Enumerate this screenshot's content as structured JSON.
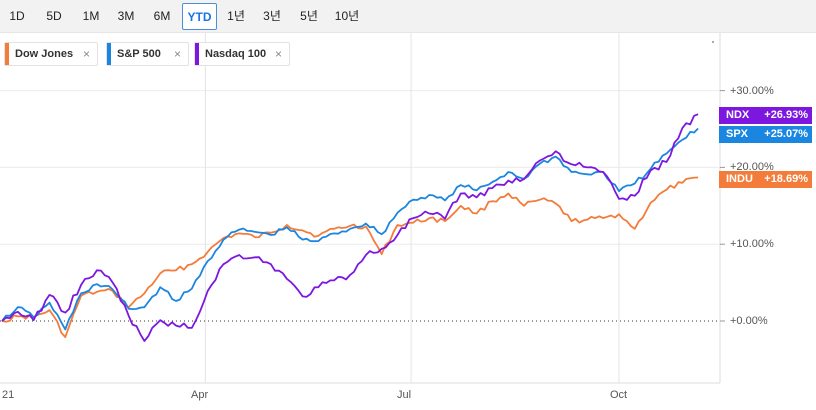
{
  "range_buttons": [
    {
      "label": "1D",
      "active": false
    },
    {
      "label": "5D",
      "active": false
    },
    {
      "label": "1M",
      "active": false
    },
    {
      "label": "3M",
      "active": false
    },
    {
      "label": "6M",
      "active": false
    },
    {
      "label": "YTD",
      "active": true
    },
    {
      "label": "1년",
      "active": false
    },
    {
      "label": "3년",
      "active": false
    },
    {
      "label": "5년",
      "active": false
    },
    {
      "label": "10년",
      "active": false
    }
  ],
  "legend": [
    {
      "label": "Dow Jones",
      "color": "#f37c3a",
      "close": "×"
    },
    {
      "label": "S&P 500",
      "color": "#1b86e0",
      "close": "×"
    },
    {
      "label": "Nasdaq 100",
      "color": "#7d17e0",
      "close": "×"
    }
  ],
  "end_labels": [
    {
      "symbol": "NDX",
      "value": "+26.93%",
      "color": "#7d17e0"
    },
    {
      "symbol": "SPX",
      "value": "+25.07%",
      "color": "#1b86e0"
    },
    {
      "symbol": "INDU",
      "value": "+18.69%",
      "color": "#f37c3a"
    }
  ],
  "y_tick_labels": [
    "+30.00%",
    "+20.00%",
    "+10.00%",
    "+0.00%"
  ],
  "x_tick_labels": [
    "21",
    "Apr",
    "Jul",
    "Oct"
  ],
  "colors": {
    "dow": "#f37c3a",
    "spx": "#1b86e0",
    "ndx": "#7d17e0",
    "active_button": "#1a73e8"
  },
  "chart_data": {
    "type": "line",
    "x_unit": "date",
    "x_ticks": [
      "2021-01-01",
      "2021-04-01",
      "2021-07-01",
      "2021-10-01"
    ],
    "x_tick_labels": [
      "21",
      "Apr",
      "Jul",
      "Oct"
    ],
    "y_ticks": [
      0,
      10,
      20,
      30
    ],
    "y_tick_labels": [
      "+0.00%",
      "+10.00%",
      "+20.00%",
      "+30.00%"
    ],
    "ylim": [
      -8.5,
      37
    ],
    "xlim": [
      "2021-01-01",
      "2021-11-05"
    ],
    "zero_line": "dotted",
    "grid": "vertical at x ticks",
    "legend_position": "top-left",
    "series": [
      {
        "name": "Dow Jones",
        "symbol": "INDU",
        "color": "#f37c3a",
        "last_value": 18.69,
        "points": [
          [
            "2021-01-01",
            0
          ],
          [
            "2021-01-08",
            0.6
          ],
          [
            "2021-01-15",
            0.5
          ],
          [
            "2021-01-22",
            1.4
          ],
          [
            "2021-01-29",
            -2.1
          ],
          [
            "2021-02-05",
            3.3
          ],
          [
            "2021-02-12",
            3.8
          ],
          [
            "2021-02-19",
            3.9
          ],
          [
            "2021-02-26",
            1.8
          ],
          [
            "2021-03-05",
            3.6
          ],
          [
            "2021-03-12",
            6.2
          ],
          [
            "2021-03-19",
            6.6
          ],
          [
            "2021-03-26",
            7.4
          ],
          [
            "2021-04-02",
            9.0
          ],
          [
            "2021-04-09",
            10.8
          ],
          [
            "2021-04-16",
            11.4
          ],
          [
            "2021-04-23",
            10.9
          ],
          [
            "2021-04-30",
            11.5
          ],
          [
            "2021-05-07",
            12.5
          ],
          [
            "2021-05-14",
            11.8
          ],
          [
            "2021-05-21",
            11.1
          ],
          [
            "2021-05-28",
            12.0
          ],
          [
            "2021-06-04",
            12.4
          ],
          [
            "2021-06-11",
            12.3
          ],
          [
            "2021-06-18",
            8.7
          ],
          [
            "2021-06-25",
            12.5
          ],
          [
            "2021-07-02",
            12.8
          ],
          [
            "2021-07-09",
            13.4
          ],
          [
            "2021-07-16",
            13.0
          ],
          [
            "2021-07-23",
            15.0
          ],
          [
            "2021-07-30",
            14.0
          ],
          [
            "2021-08-06",
            15.6
          ],
          [
            "2021-08-13",
            16.6
          ],
          [
            "2021-08-20",
            15.0
          ],
          [
            "2021-08-27",
            15.8
          ],
          [
            "2021-09-03",
            15.3
          ],
          [
            "2021-09-10",
            13.0
          ],
          [
            "2021-09-17",
            13.2
          ],
          [
            "2021-09-24",
            13.4
          ],
          [
            "2021-10-01",
            13.9
          ],
          [
            "2021-10-08",
            12.0
          ],
          [
            "2021-10-15",
            15.4
          ],
          [
            "2021-10-22",
            17.1
          ],
          [
            "2021-10-29",
            18.0
          ],
          [
            "2021-11-05",
            18.69
          ]
        ]
      },
      {
        "name": "S&P 500",
        "symbol": "SPX",
        "color": "#1b86e0",
        "last_value": 25.07,
        "points": [
          [
            "2021-01-01",
            0
          ],
          [
            "2021-01-08",
            1.8
          ],
          [
            "2021-01-15",
            0.5
          ],
          [
            "2021-01-22",
            2.4
          ],
          [
            "2021-01-29",
            -1.1
          ],
          [
            "2021-02-05",
            3.6
          ],
          [
            "2021-02-12",
            4.8
          ],
          [
            "2021-02-19",
            4.1
          ],
          [
            "2021-02-26",
            1.6
          ],
          [
            "2021-03-05",
            1.8
          ],
          [
            "2021-03-12",
            4.4
          ],
          [
            "2021-03-19",
            2.6
          ],
          [
            "2021-03-26",
            4.2
          ],
          [
            "2021-04-02",
            7.8
          ],
          [
            "2021-04-09",
            10.6
          ],
          [
            "2021-04-16",
            11.9
          ],
          [
            "2021-04-23",
            11.6
          ],
          [
            "2021-04-30",
            11.2
          ],
          [
            "2021-05-07",
            12.2
          ],
          [
            "2021-05-14",
            10.6
          ],
          [
            "2021-05-21",
            10.4
          ],
          [
            "2021-05-28",
            11.4
          ],
          [
            "2021-06-04",
            12.0
          ],
          [
            "2021-06-11",
            12.7
          ],
          [
            "2021-06-18",
            11.3
          ],
          [
            "2021-06-25",
            14.1
          ],
          [
            "2021-07-02",
            15.8
          ],
          [
            "2021-07-09",
            16.4
          ],
          [
            "2021-07-16",
            15.7
          ],
          [
            "2021-07-23",
            17.7
          ],
          [
            "2021-07-30",
            17.0
          ],
          [
            "2021-08-06",
            18.1
          ],
          [
            "2021-08-13",
            19.4
          ],
          [
            "2021-08-20",
            18.5
          ],
          [
            "2021-08-27",
            20.5
          ],
          [
            "2021-09-03",
            21.4
          ],
          [
            "2021-09-10",
            19.4
          ],
          [
            "2021-09-17",
            19.1
          ],
          [
            "2021-09-24",
            19.4
          ],
          [
            "2021-10-01",
            16.9
          ],
          [
            "2021-10-08",
            17.9
          ],
          [
            "2021-10-15",
            19.8
          ],
          [
            "2021-10-22",
            21.8
          ],
          [
            "2021-10-29",
            23.6
          ],
          [
            "2021-11-05",
            25.07
          ]
        ]
      },
      {
        "name": "Nasdaq 100",
        "symbol": "NDX",
        "color": "#7d17e0",
        "last_value": 26.93,
        "points": [
          [
            "2021-01-01",
            0
          ],
          [
            "2021-01-08",
            1.2
          ],
          [
            "2021-01-15",
            0.1
          ],
          [
            "2021-01-22",
            3.4
          ],
          [
            "2021-01-29",
            1.1
          ],
          [
            "2021-02-05",
            4.7
          ],
          [
            "2021-02-12",
            6.6
          ],
          [
            "2021-02-19",
            5.0
          ],
          [
            "2021-02-26",
            0.7
          ],
          [
            "2021-03-05",
            -2.6
          ],
          [
            "2021-03-12",
            0.1
          ],
          [
            "2021-03-19",
            -0.6
          ],
          [
            "2021-03-26",
            -0.9
          ],
          [
            "2021-04-02",
            3.9
          ],
          [
            "2021-04-09",
            7.4
          ],
          [
            "2021-04-16",
            8.6
          ],
          [
            "2021-04-23",
            8.3
          ],
          [
            "2021-04-30",
            7.4
          ],
          [
            "2021-05-07",
            5.5
          ],
          [
            "2021-05-14",
            3.2
          ],
          [
            "2021-05-21",
            4.4
          ],
          [
            "2021-05-28",
            5.3
          ],
          [
            "2021-06-04",
            6.0
          ],
          [
            "2021-06-11",
            8.6
          ],
          [
            "2021-06-18",
            9.4
          ],
          [
            "2021-06-25",
            11.2
          ],
          [
            "2021-07-02",
            13.4
          ],
          [
            "2021-07-09",
            14.0
          ],
          [
            "2021-07-16",
            13.3
          ],
          [
            "2021-07-23",
            16.6
          ],
          [
            "2021-07-30",
            16.1
          ],
          [
            "2021-08-06",
            17.3
          ],
          [
            "2021-08-13",
            18.3
          ],
          [
            "2021-08-20",
            18.5
          ],
          [
            "2021-08-27",
            20.9
          ],
          [
            "2021-09-03",
            22.1
          ],
          [
            "2021-09-10",
            20.4
          ],
          [
            "2021-09-17",
            20.0
          ],
          [
            "2021-09-24",
            19.4
          ],
          [
            "2021-10-01",
            15.9
          ],
          [
            "2021-10-08",
            16.3
          ],
          [
            "2021-10-15",
            19.6
          ],
          [
            "2021-10-22",
            20.7
          ],
          [
            "2021-10-29",
            25.1
          ],
          [
            "2021-11-05",
            26.93
          ]
        ]
      }
    ]
  }
}
